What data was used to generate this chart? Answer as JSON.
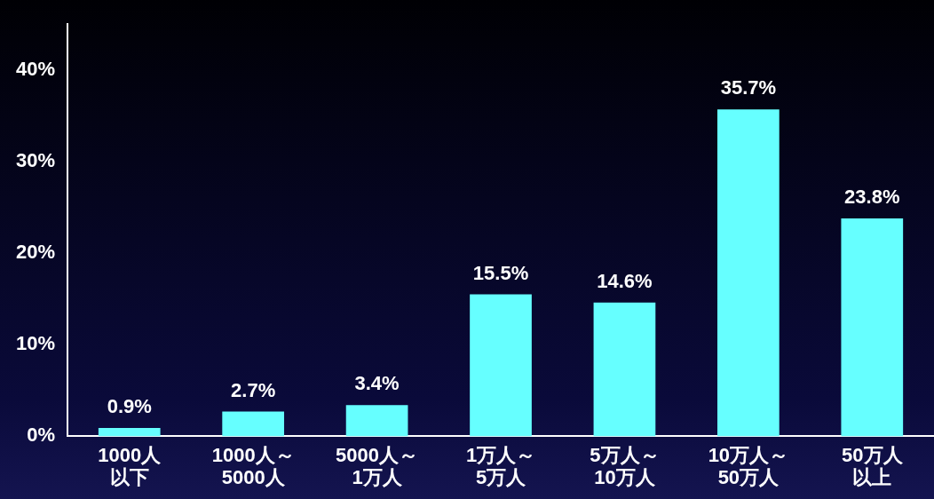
{
  "chart_data": {
    "type": "bar",
    "categories": [
      "1000人以下",
      "1000人～5000人",
      "5000人～1万人",
      "1万人～5万人",
      "5万人～10万人",
      "10万人～50万人",
      "50万人以上"
    ],
    "values": [
      0.9,
      2.7,
      3.4,
      15.5,
      14.6,
      35.7,
      23.8
    ],
    "color": "#66ffff",
    "ylim": [
      0,
      45
    ],
    "yticks": [
      {
        "value": 0,
        "label": "0%"
      },
      {
        "value": 10,
        "label": "10%"
      },
      {
        "value": 20,
        "label": "20%"
      },
      {
        "value": 30,
        "label": "30%"
      },
      {
        "value": 40,
        "label": "40%"
      }
    ],
    "value_labels": [
      "0.9%",
      "2.7%",
      "3.4%",
      "15.5%",
      "14.6%",
      "35.7%",
      "23.8%"
    ],
    "grid": false,
    "legend": false
  }
}
